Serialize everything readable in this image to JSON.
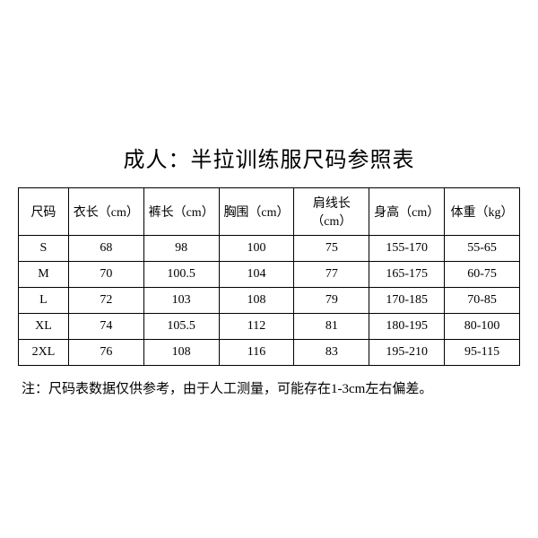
{
  "title": "成人：半拉训练服尺码参照表",
  "table": {
    "type": "table",
    "columns": [
      "尺码",
      "衣长（cm）",
      "裤长（cm）",
      "胸围（cm）",
      "肩线长（cm）",
      "身高（cm）",
      "体重（kg）"
    ],
    "rows": [
      [
        "S",
        "68",
        "98",
        "100",
        "75",
        "155-170",
        "55-65"
      ],
      [
        "M",
        "70",
        "100.5",
        "104",
        "77",
        "165-175",
        "60-75"
      ],
      [
        "L",
        "72",
        "103",
        "108",
        "79",
        "170-185",
        "70-85"
      ],
      [
        "XL",
        "74",
        "105.5",
        "112",
        "81",
        "180-195",
        "80-100"
      ],
      [
        "2XL",
        "76",
        "108",
        "116",
        "83",
        "195-210",
        "95-115"
      ]
    ],
    "column_widths_pct": [
      10,
      15,
      15,
      15,
      15,
      15,
      15
    ],
    "border_color": "#000000",
    "background_color": "#ffffff",
    "text_color": "#000000",
    "header_fontsize": 14,
    "cell_fontsize": 14
  },
  "note": "注：尺码表数据仅供参考，由于人工测量，可能存在1-3cm左右偏差。",
  "title_fontsize": 24,
  "note_fontsize": 15
}
